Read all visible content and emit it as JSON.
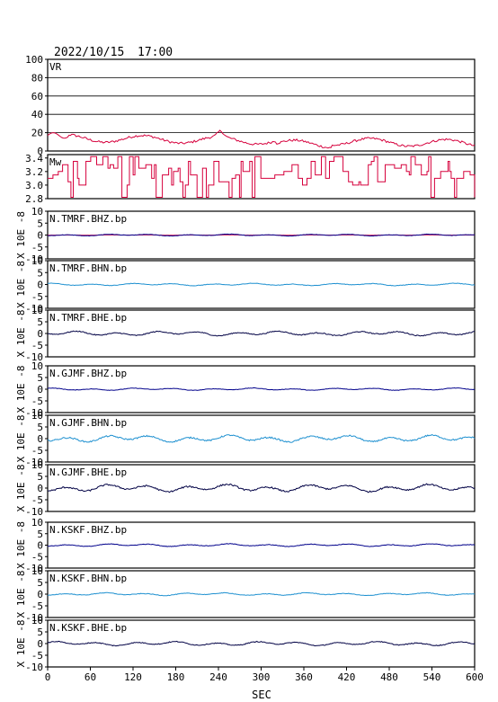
{
  "header": {
    "date": "2022/10/15",
    "time": "17:00"
  },
  "colors": {
    "frame": "#000000",
    "mt_line": "#d6003c",
    "bhz_line": "#00008b",
    "bhn_line": "#1e90d0",
    "bhe_line": "#000044",
    "zero_line_red": "#d6003c"
  },
  "chart_data": [
    {
      "type": "line",
      "label": "VR",
      "ylim": [
        0,
        100
      ],
      "yticks": [
        0,
        20,
        40,
        60,
        80,
        100
      ],
      "grid": "horizontal",
      "color": "mt_line",
      "series_shape": "noisy values around 10-20, peak near 240 s"
    },
    {
      "type": "line",
      "label": "Mw",
      "ylim": [
        2.8,
        3.45
      ],
      "yticks": [
        "2.8",
        "3.0",
        "3.2",
        "3.4"
      ],
      "grid": "none",
      "color": "mt_line"
    },
    {
      "type": "line",
      "label": "N.TMRF.BHZ.bp",
      "ylim": [
        -10,
        10
      ],
      "yticks": [
        -10,
        -5,
        0,
        5,
        10
      ],
      "unit": "X 10E -8",
      "color": "bhz_line",
      "amplitude": 0.4,
      "zero_line": "red"
    },
    {
      "type": "line",
      "label": "N.TMRF.BHN.bp",
      "ylim": [
        -10,
        10
      ],
      "yticks": [
        -10,
        -5,
        0,
        5,
        10
      ],
      "unit": "X 10E -8",
      "color": "bhn_line",
      "amplitude": 0.5
    },
    {
      "type": "line",
      "label": "N.TMRF.BHE.bp",
      "ylim": [
        -10,
        10
      ],
      "yticks": [
        -10,
        -5,
        0,
        5,
        10
      ],
      "unit": "X 10E -8",
      "color": "bhe_line",
      "amplitude": 1.0
    },
    {
      "type": "line",
      "label": "N.GJMF.BHZ.bp",
      "ylim": [
        -10,
        10
      ],
      "yticks": [
        -10,
        -5,
        0,
        5,
        10
      ],
      "unit": "X 10E -8",
      "color": "bhz_line",
      "amplitude": 0.5
    },
    {
      "type": "line",
      "label": "N.GJMF.BHN.bp",
      "ylim": [
        -10,
        10
      ],
      "yticks": [
        -10,
        -5,
        0,
        5,
        10
      ],
      "unit": "X 10E -8",
      "color": "bhn_line",
      "amplitude": 1.5
    },
    {
      "type": "line",
      "label": "N.GJMF.BHE.bp",
      "ylim": [
        -10,
        10
      ],
      "yticks": [
        -10,
        -5,
        0,
        5,
        10
      ],
      "unit": "X 10E -8",
      "color": "bhe_line",
      "amplitude": 1.6
    },
    {
      "type": "line",
      "label": "N.KSKF.BHZ.bp",
      "ylim": [
        -10,
        10
      ],
      "yticks": [
        -10,
        -5,
        0,
        5,
        10
      ],
      "unit": "X 10E -8",
      "color": "bhz_line",
      "amplitude": 0.6
    },
    {
      "type": "line",
      "label": "N.KSKF.BHN.bp",
      "ylim": [
        -10,
        10
      ],
      "yticks": [
        -10,
        -5,
        0,
        5,
        10
      ],
      "unit": "X 10E -8",
      "color": "bhn_line",
      "amplitude": 0.6
    },
    {
      "type": "line",
      "label": "N.KSKF.BHE.bp",
      "ylim": [
        -10,
        10
      ],
      "yticks": [
        -10,
        -5,
        0,
        5,
        10
      ],
      "unit": "X 10E -8",
      "color": "bhe_line",
      "amplitude": 0.9
    }
  ],
  "x_axis": {
    "label": "SEC",
    "xlim": [
      0,
      600
    ],
    "ticks": [
      0,
      60,
      120,
      180,
      240,
      300,
      360,
      420,
      480,
      540,
      600
    ]
  }
}
